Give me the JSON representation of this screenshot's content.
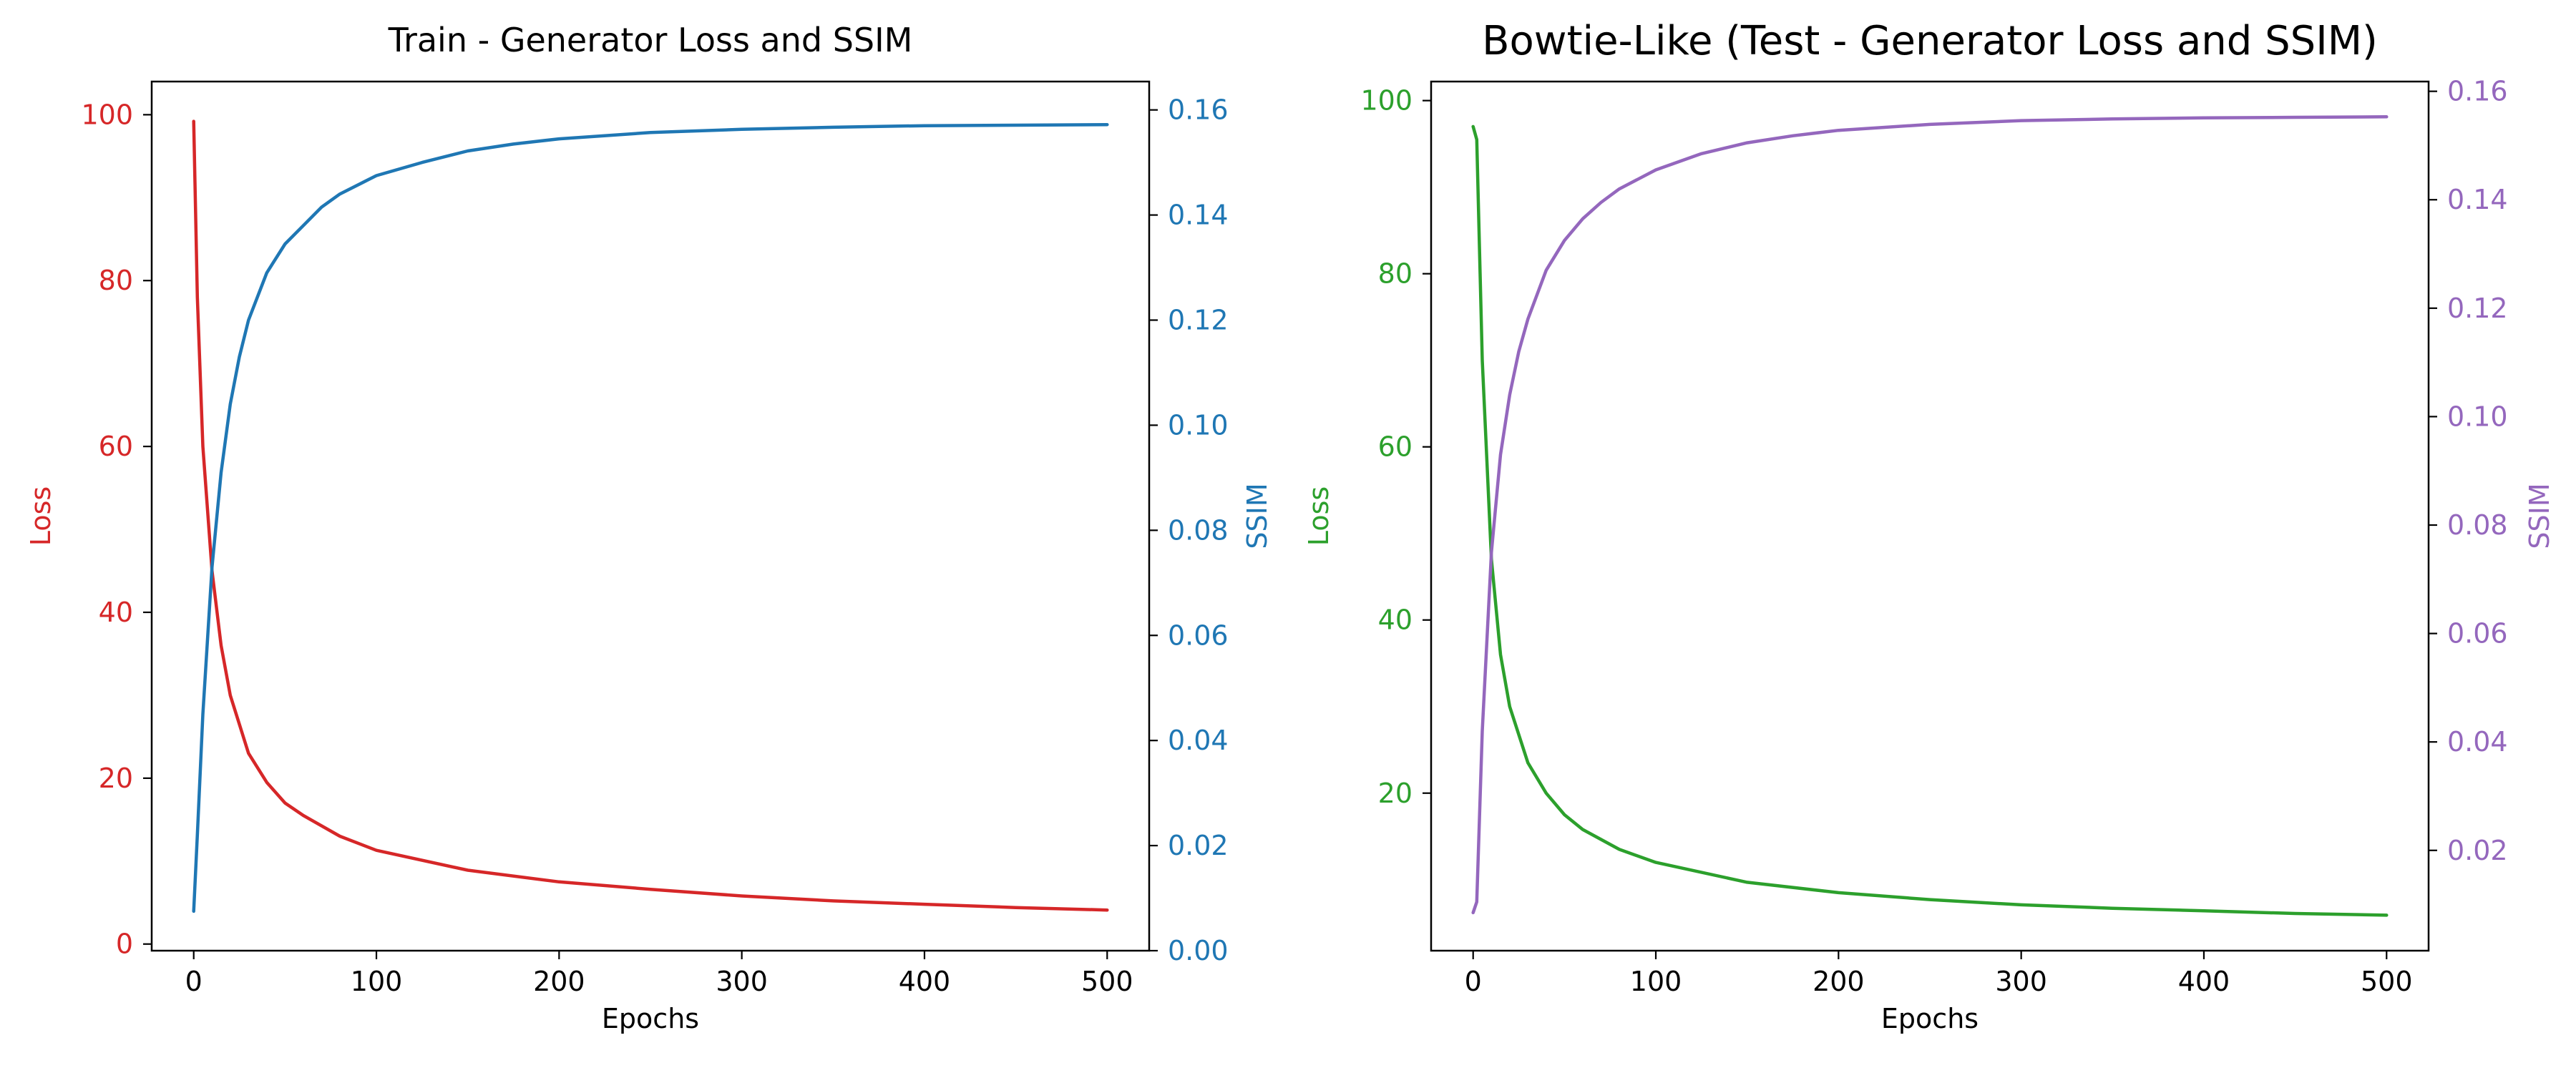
{
  "chart_data": [
    {
      "type": "line",
      "title": "Train - Generator Loss and SSIM",
      "xlabel": "Epochs",
      "ylabel_left": "Loss",
      "ylabel_right": "SSIM",
      "xlim": [
        -23,
        523
      ],
      "ylim_left": [
        -0.8,
        104
      ],
      "ylim_right": [
        0.0,
        0.1654
      ],
      "xticks": [
        0,
        100,
        200,
        300,
        400,
        500
      ],
      "yticks_left": [
        0,
        20,
        40,
        60,
        80,
        100
      ],
      "yticks_right": [
        "0.00",
        "0.02",
        "0.04",
        "0.06",
        "0.08",
        "0.10",
        "0.12",
        "0.14",
        "0.16"
      ],
      "left_color": "#d62728",
      "right_color": "#1f77b4",
      "series": [
        {
          "axis": "left",
          "color": "#d62728",
          "x": [
            0,
            2,
            5,
            10,
            15,
            20,
            30,
            40,
            50,
            60,
            80,
            100,
            150,
            200,
            250,
            300,
            350,
            400,
            450,
            500
          ],
          "values": [
            99.2,
            78,
            60,
            45,
            36,
            30,
            23,
            19.5,
            17.0,
            15.5,
            13.0,
            11.3,
            8.9,
            7.5,
            6.6,
            5.8,
            5.2,
            4.8,
            4.4,
            4.1
          ]
        },
        {
          "axis": "right",
          "color": "#1f77b4",
          "x": [
            0,
            2,
            5,
            10,
            15,
            20,
            25,
            30,
            40,
            50,
            60,
            70,
            80,
            100,
            125,
            150,
            175,
            200,
            250,
            300,
            350,
            400,
            450,
            500
          ],
          "values": [
            0.0075,
            0.022,
            0.045,
            0.073,
            0.091,
            0.104,
            0.113,
            0.12,
            0.129,
            0.1345,
            0.138,
            0.1415,
            0.144,
            0.1475,
            0.15,
            0.1522,
            0.1535,
            0.1545,
            0.1557,
            0.1563,
            0.1567,
            0.157,
            0.1571,
            0.1572
          ]
        }
      ]
    },
    {
      "type": "line",
      "title": "Bowtie-Like (Test - Generator Loss and SSIM)",
      "xlabel": "Epochs",
      "ylabel_left": "Loss",
      "ylabel_right": "SSIM",
      "xlim": [
        -23,
        523
      ],
      "ylim_left": [
        1.8,
        102.2
      ],
      "ylim_right": [
        0.0015,
        0.1618
      ],
      "xticks": [
        0,
        100,
        200,
        300,
        400,
        500
      ],
      "yticks_left": [
        20,
        40,
        60,
        80,
        100
      ],
      "yticks_right": [
        "0.02",
        "0.04",
        "0.06",
        "0.08",
        "0.10",
        "0.12",
        "0.14",
        "0.16"
      ],
      "left_color": "#2ca02c",
      "right_color": "#9467bd",
      "series": [
        {
          "axis": "left",
          "color": "#2ca02c",
          "x": [
            0,
            2,
            5,
            10,
            15,
            20,
            30,
            40,
            50,
            60,
            80,
            100,
            150,
            200,
            250,
            300,
            350,
            400,
            450,
            500
          ],
          "values": [
            97.0,
            95.5,
            70,
            47,
            36,
            30,
            23.5,
            20,
            17.5,
            15.8,
            13.5,
            12.0,
            9.7,
            8.5,
            7.7,
            7.1,
            6.7,
            6.4,
            6.1,
            5.9
          ]
        },
        {
          "axis": "right",
          "color": "#9467bd",
          "x": [
            0,
            2,
            5,
            10,
            15,
            20,
            25,
            30,
            40,
            50,
            60,
            70,
            80,
            100,
            125,
            150,
            175,
            200,
            250,
            300,
            350,
            400,
            450,
            500
          ],
          "values": [
            0.0085,
            0.0105,
            0.042,
            0.075,
            0.093,
            0.104,
            0.112,
            0.118,
            0.127,
            0.1325,
            0.1365,
            0.1395,
            0.142,
            0.1455,
            0.1485,
            0.1505,
            0.1518,
            0.1528,
            0.1539,
            0.1546,
            0.1549,
            0.1551,
            0.1552,
            0.1553
          ]
        }
      ]
    }
  ]
}
